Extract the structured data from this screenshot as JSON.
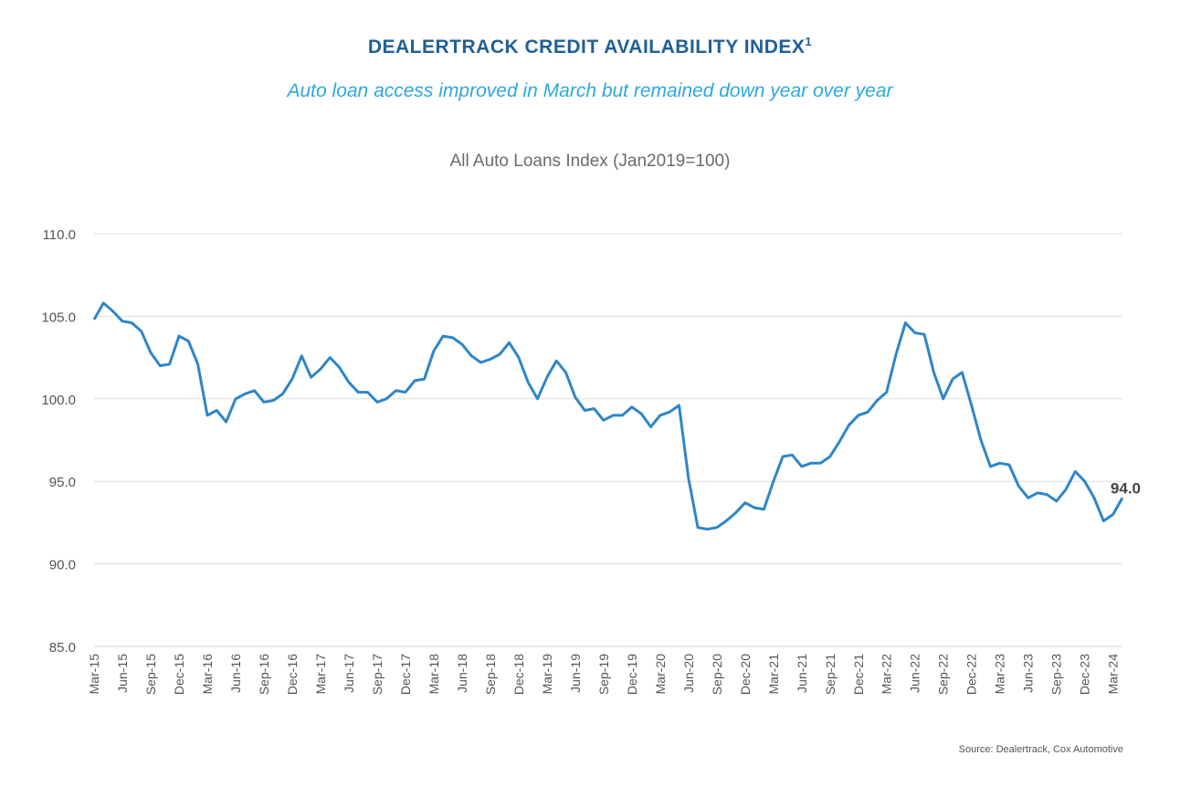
{
  "header": {
    "title": "DEALERTRACK CREDIT AVAILABILITY INDEX",
    "title_superscript": "1",
    "subtitle": "Auto loan access improved in March but remained down year over year"
  },
  "source": "Source: Dealertrack, Cox Automotive",
  "colors": {
    "line": "#2e86c9",
    "grid": "#dddddd",
    "axis_text": "#555555"
  },
  "chart_data": {
    "type": "line",
    "title": "All Auto Loans Index (Jan2019=100)",
    "xlabel": "",
    "ylabel": "",
    "ylim": [
      85,
      110
    ],
    "y_ticks": [
      "85.0",
      "90.0",
      "95.0",
      "100.0",
      "105.0",
      "110.0"
    ],
    "grid": true,
    "x_tick_labels": [
      "Mar-15",
      "Jun-15",
      "Sep-15",
      "Dec-15",
      "Mar-16",
      "Jun-16",
      "Sep-16",
      "Dec-16",
      "Mar-17",
      "Jun-17",
      "Sep-17",
      "Dec-17",
      "Mar-18",
      "Jun-18",
      "Sep-18",
      "Dec-18",
      "Mar-19",
      "Jun-19",
      "Sep-19",
      "Dec-19",
      "Mar-20",
      "Jun-20",
      "Sep-20",
      "Dec-20",
      "Mar-21",
      "Jun-21",
      "Sep-21",
      "Dec-21",
      "Mar-22",
      "Jun-22",
      "Sep-22",
      "Dec-22",
      "Mar-23",
      "Jun-23",
      "Sep-23",
      "Dec-23",
      "Mar-24"
    ],
    "series": [
      {
        "name": "All Auto Loans Index",
        "start_month": "Mar-15",
        "values": [
          104.8,
          105.8,
          105.3,
          104.7,
          104.6,
          104.1,
          102.8,
          102.0,
          102.1,
          103.8,
          103.5,
          102.1,
          99.0,
          99.3,
          98.6,
          100.0,
          100.3,
          100.5,
          99.8,
          99.9,
          100.3,
          101.2,
          102.6,
          101.3,
          101.8,
          102.5,
          101.9,
          101.0,
          100.4,
          100.4,
          99.8,
          100.0,
          100.5,
          100.4,
          101.1,
          101.2,
          102.9,
          103.8,
          103.7,
          103.3,
          102.6,
          102.2,
          102.4,
          102.7,
          103.4,
          102.5,
          101.0,
          100.0,
          101.3,
          102.3,
          101.6,
          100.1,
          99.3,
          99.4,
          98.7,
          99.0,
          99.0,
          99.5,
          99.1,
          98.3,
          99.0,
          99.2,
          99.6,
          95.2,
          92.2,
          92.1,
          92.2,
          92.6,
          93.1,
          93.7,
          93.4,
          93.3,
          95.0,
          96.5,
          96.6,
          95.9,
          96.1,
          96.1,
          96.5,
          97.4,
          98.4,
          99.0,
          99.2,
          99.9,
          100.4,
          102.7,
          104.6,
          104.0,
          103.9,
          101.6,
          100.0,
          101.2,
          101.6,
          99.6,
          97.5,
          95.9,
          96.1,
          96.0,
          94.7,
          94.0,
          94.3,
          94.2,
          93.8,
          94.5,
          95.6,
          95.0,
          94.0,
          92.6,
          93.0,
          94.0
        ]
      }
    ],
    "annotations": [
      {
        "label": "94.0",
        "x": "Mar-24",
        "value": 94.0
      }
    ]
  }
}
